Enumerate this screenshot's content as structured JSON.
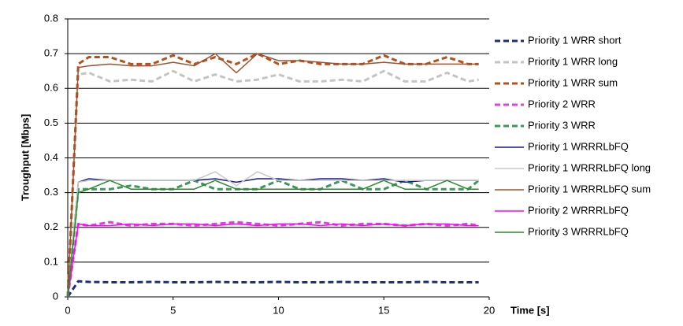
{
  "chart_data": {
    "type": "line",
    "x_label": "Time [s]",
    "y_label": "Troughput [Mbps]",
    "x": [
      0,
      0.5,
      1,
      2,
      3,
      4,
      5,
      6,
      7,
      8,
      9,
      10,
      11,
      12,
      13,
      14,
      15,
      16,
      17,
      18,
      19,
      19.5
    ],
    "xlim": [
      0,
      20
    ],
    "xticks": [
      0,
      5,
      10,
      15,
      20
    ],
    "ylim": [
      0,
      0.8
    ],
    "yticks": [
      0,
      0.1,
      0.2,
      0.3,
      0.4,
      0.5,
      0.6,
      0.7,
      0.8
    ],
    "grid": true,
    "legend": "right",
    "series": [
      {
        "name": "Priority 1 WRR short",
        "color": "#1f2f7a",
        "dashed": true,
        "values": [
          0,
          0.045,
          0.043,
          0.042,
          0.042,
          0.043,
          0.042,
          0.042,
          0.043,
          0.042,
          0.042,
          0.043,
          0.042,
          0.042,
          0.043,
          0.042,
          0.042,
          0.042,
          0.043,
          0.042,
          0.042,
          0.042
        ]
      },
      {
        "name": "Priority 1 WRR long",
        "color": "#c4c4c4",
        "dashed": true,
        "values": [
          0,
          0.64,
          0.645,
          0.62,
          0.625,
          0.62,
          0.65,
          0.62,
          0.64,
          0.62,
          0.625,
          0.64,
          0.62,
          0.62,
          0.625,
          0.62,
          0.65,
          0.62,
          0.62,
          0.645,
          0.62,
          0.625
        ]
      },
      {
        "name": "Priority 1 WRR sum",
        "color": "#b5501c",
        "dashed": true,
        "values": [
          0,
          0.67,
          0.69,
          0.69,
          0.67,
          0.67,
          0.695,
          0.67,
          0.69,
          0.67,
          0.7,
          0.67,
          0.68,
          0.67,
          0.67,
          0.67,
          0.695,
          0.67,
          0.67,
          0.69,
          0.67,
          0.67
        ]
      },
      {
        "name": "Priority 2 WRR",
        "color": "#e040e0",
        "dashed": true,
        "values": [
          0,
          0.21,
          0.205,
          0.215,
          0.205,
          0.21,
          0.21,
          0.205,
          0.21,
          0.215,
          0.21,
          0.205,
          0.21,
          0.215,
          0.205,
          0.21,
          0.21,
          0.205,
          0.21,
          0.205,
          0.21,
          0.205
        ]
      },
      {
        "name": "Priority 3 WRR",
        "color": "#3a9a5a",
        "dashed": true,
        "values": [
          0,
          0.31,
          0.31,
          0.31,
          0.32,
          0.31,
          0.31,
          0.335,
          0.31,
          0.31,
          0.31,
          0.335,
          0.31,
          0.31,
          0.335,
          0.31,
          0.31,
          0.335,
          0.31,
          0.31,
          0.31,
          0.335
        ]
      },
      {
        "name": "Priority 1 WRRRLbFQ",
        "color": "#1a1a8a",
        "dashed": false,
        "values": [
          0,
          0.33,
          0.34,
          0.335,
          0.335,
          0.335,
          0.335,
          0.335,
          0.34,
          0.33,
          0.34,
          0.34,
          0.335,
          0.34,
          0.34,
          0.335,
          0.34,
          0.33,
          0.335,
          0.335,
          0.335,
          0.335
        ]
      },
      {
        "name": "Priority 1 WRRRLbFQ long",
        "color": "#c8c8c8",
        "dashed": false,
        "values": [
          0,
          0.33,
          0.335,
          0.335,
          0.335,
          0.335,
          0.335,
          0.335,
          0.36,
          0.32,
          0.36,
          0.335,
          0.335,
          0.335,
          0.335,
          0.335,
          0.335,
          0.335,
          0.335,
          0.335,
          0.335,
          0.335
        ]
      },
      {
        "name": "Priority 1 WRRRLbFQ sum",
        "color": "#a0522d",
        "dashed": false,
        "values": [
          0,
          0.66,
          0.665,
          0.67,
          0.665,
          0.665,
          0.675,
          0.665,
          0.7,
          0.645,
          0.7,
          0.68,
          0.68,
          0.675,
          0.67,
          0.67,
          0.675,
          0.67,
          0.67,
          0.67,
          0.67,
          0.67
        ]
      },
      {
        "name": "Priority 2 WRRRLbFQ",
        "color": "#ff00ff",
        "dashed": false,
        "values": [
          0,
          0.21,
          0.205,
          0.205,
          0.21,
          0.205,
          0.21,
          0.21,
          0.205,
          0.21,
          0.205,
          0.21,
          0.21,
          0.205,
          0.21,
          0.205,
          0.21,
          0.205,
          0.21,
          0.21,
          0.205,
          0.205
        ]
      },
      {
        "name": "Priority 3 WRRRLbFQ",
        "color": "#2a8a2a",
        "dashed": false,
        "values": [
          0,
          0.3,
          0.31,
          0.335,
          0.31,
          0.31,
          0.31,
          0.31,
          0.335,
          0.31,
          0.31,
          0.31,
          0.31,
          0.31,
          0.31,
          0.31,
          0.335,
          0.31,
          0.31,
          0.335,
          0.31,
          0.31
        ]
      }
    ]
  }
}
